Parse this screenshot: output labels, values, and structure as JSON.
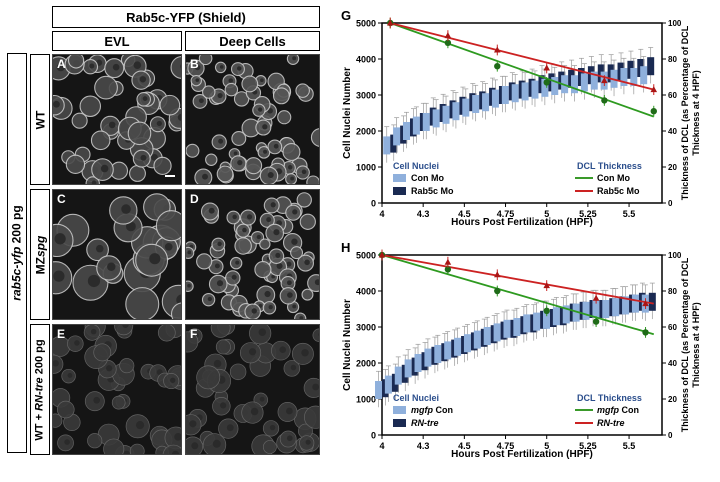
{
  "left_panel": {
    "header": "Rab5c-YFP (Shield)",
    "col_evl": "EVL",
    "col_deep": "Deep Cells",
    "side_label_italic": "rab5c-yfp",
    "side_label_rest": " 200 pg",
    "rows": [
      {
        "label_plain": "WT",
        "label_italic": "",
        "label_tail": ""
      },
      {
        "label_plain": "MZ",
        "label_italic": "spg",
        "label_tail": ""
      },
      {
        "label_plain": "WT + ",
        "label_italic": "RN-tre",
        "label_tail": " 200 pg"
      }
    ],
    "panel_letters": [
      "A",
      "B",
      "C",
      "D",
      "E",
      "F"
    ]
  },
  "chart_data": [
    {
      "panel": "G",
      "type": "box+line",
      "xlabel": "Hours Post Fertilization (HPF)",
      "ylabel": "Cell Nuclei Number",
      "y2label": "Thickness of DCL (as Percentage of DCL Thickness at 4 HPF)",
      "xticks": [
        "4",
        "4.3",
        "4.5",
        "4.75",
        "5",
        "5.25",
        "5.5"
      ],
      "xtick_values": [
        4,
        4.25,
        4.5,
        4.75,
        5,
        5.25,
        5.5
      ],
      "xlim": [
        4,
        5.7
      ],
      "ylim": [
        0,
        5000
      ],
      "yticks": [
        0,
        1000,
        2000,
        3000,
        4000,
        5000
      ],
      "y2lim": [
        0,
        100
      ],
      "y2ticks": [
        0,
        20,
        40,
        60,
        80,
        100
      ],
      "legend": {
        "left_title": "Cell Nuclei",
        "left_items": [
          {
            "italic": "",
            "text": "Con Mo",
            "color": "#8fb0dc"
          },
          {
            "italic": "",
            "text": "Rab5c Mo",
            "color": "#1a2a52"
          }
        ],
        "right_title": "DCL Thickness",
        "right_items": [
          {
            "italic": "",
            "text": "Con Mo",
            "color": "#3a9a2a"
          },
          {
            "italic": "",
            "text": "Rab5c Mo",
            "color": "#cc2222"
          }
        ]
      },
      "box_series": {
        "start": 4.05,
        "step": 0.06,
        "a": [
          1600,
          1850,
          2000,
          2150,
          2250,
          2350,
          2450,
          2550,
          2650,
          2750,
          2800,
          2900,
          3000,
          3050,
          3100,
          3150,
          3200,
          3250,
          3300,
          3300,
          3350,
          3400,
          3400,
          3450,
          3500,
          3500,
          3550
        ],
        "b": [
          1650,
          1900,
          2100,
          2250,
          2400,
          2500,
          2600,
          2700,
          2800,
          2850,
          2950,
          3000,
          3100,
          3150,
          3200,
          3300,
          3350,
          3400,
          3450,
          3500,
          3550,
          3600,
          3600,
          3650,
          3700,
          3750,
          3800
        ]
      },
      "green_line": {
        "x": [
          4.05,
          5.65
        ],
        "y": [
          100,
          48
        ]
      },
      "red_line": {
        "x": [
          4.05,
          5.65
        ],
        "y": [
          100,
          63
        ]
      },
      "green_points": {
        "x": [
          4.05,
          4.4,
          4.7,
          5.0,
          5.35,
          5.65
        ],
        "y": [
          100,
          89,
          76,
          67,
          57,
          51
        ]
      },
      "red_points": {
        "x": [
          4.05,
          4.4,
          4.7,
          5.0,
          5.35,
          5.65
        ],
        "y": [
          100,
          93,
          85,
          75,
          68,
          63
        ]
      }
    },
    {
      "panel": "H",
      "type": "box+line",
      "xlabel": "Hours Post Fertilization (HPF)",
      "ylabel": "Cell Nuclei Number",
      "y2label": "Thickness of DCL (as Percentage of DCL Thickness at 4 HPF)",
      "xticks": [
        "4",
        "4.3",
        "4.5",
        "4.75",
        "5",
        "5.25",
        "5.5"
      ],
      "xtick_values": [
        4,
        4.25,
        4.5,
        4.75,
        5,
        5.25,
        5.5
      ],
      "xlim": [
        4,
        5.7
      ],
      "ylim": [
        0,
        5000
      ],
      "yticks": [
        0,
        1000,
        2000,
        3000,
        4000,
        5000
      ],
      "y2lim": [
        0,
        100
      ],
      "y2ticks": [
        0,
        20,
        40,
        60,
        80,
        100
      ],
      "legend": {
        "left_title": "Cell Nuclei",
        "left_items": [
          {
            "italic": "mgfp",
            "text": " Con",
            "color": "#8fb0dc"
          },
          {
            "italic": "RN-tre",
            "text": "",
            "color": "#1a2a52"
          }
        ],
        "right_title": "DCL Thickness",
        "right_items": [
          {
            "italic": "mgfp",
            "text": " Con",
            "color": "#3a9a2a"
          },
          {
            "italic": "RN-tre",
            "text": "",
            "color": "#cc2222"
          }
        ]
      },
      "box_series": {
        "start": 4.0,
        "step": 0.06,
        "a": [
          1250,
          1400,
          1650,
          1850,
          2000,
          2150,
          2250,
          2350,
          2450,
          2550,
          2650,
          2750,
          2850,
          2950,
          3000,
          3100,
          3150,
          3200,
          3300,
          3350,
          3400,
          3450,
          3500,
          3500,
          3550,
          3600,
          3650,
          3650
        ],
        "b": [
          1300,
          1450,
          1700,
          1900,
          2050,
          2200,
          2300,
          2400,
          2500,
          2600,
          2700,
          2800,
          2900,
          2950,
          3050,
          3100,
          3200,
          3250,
          3300,
          3400,
          3450,
          3500,
          3500,
          3550,
          3600,
          3650,
          3700,
          3700
        ]
      },
      "green_line": {
        "x": [
          4.0,
          5.65
        ],
        "y": [
          100,
          56
        ]
      },
      "red_line": {
        "x": [
          4.0,
          5.65
        ],
        "y": [
          100,
          73
        ]
      },
      "green_points": {
        "x": [
          4.0,
          4.4,
          4.7,
          5.0,
          5.3,
          5.6
        ],
        "y": [
          100,
          92,
          80,
          69,
          63,
          57
        ]
      },
      "red_points": {
        "x": [
          4.0,
          4.4,
          4.7,
          5.0,
          5.3,
          5.6
        ],
        "y": [
          100,
          96,
          89,
          83,
          76,
          73
        ]
      }
    }
  ]
}
